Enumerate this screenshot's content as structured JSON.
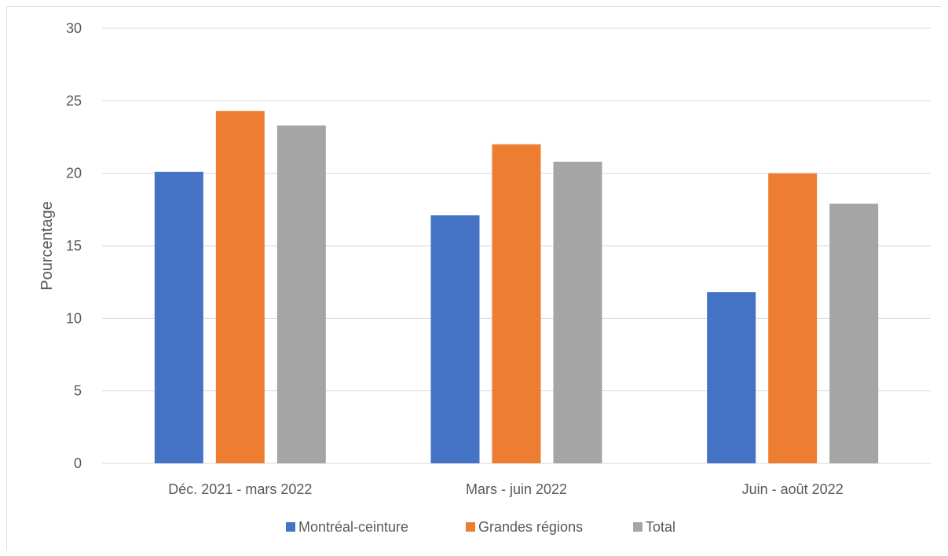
{
  "chart_data": {
    "type": "bar",
    "title": "",
    "xlabel": "",
    "ylabel": "Pourcentage",
    "ylim": [
      0,
      30
    ],
    "yticks": [
      0,
      5,
      10,
      15,
      20,
      25,
      30
    ],
    "grid": true,
    "legend_position": "bottom",
    "categories": [
      "Déc. 2021 - mars 2022",
      "Mars - juin 2022",
      "Juin - août 2022"
    ],
    "series": [
      {
        "name": "Montréal-ceinture",
        "color": "#4472C4",
        "values": [
          20.1,
          17.1,
          11.8
        ]
      },
      {
        "name": "Grandes régions",
        "color": "#ED7D31",
        "values": [
          24.3,
          22.0,
          20.0
        ]
      },
      {
        "name": "Total",
        "color": "#A5A5A5",
        "values": [
          23.3,
          20.8,
          17.9
        ]
      }
    ]
  }
}
